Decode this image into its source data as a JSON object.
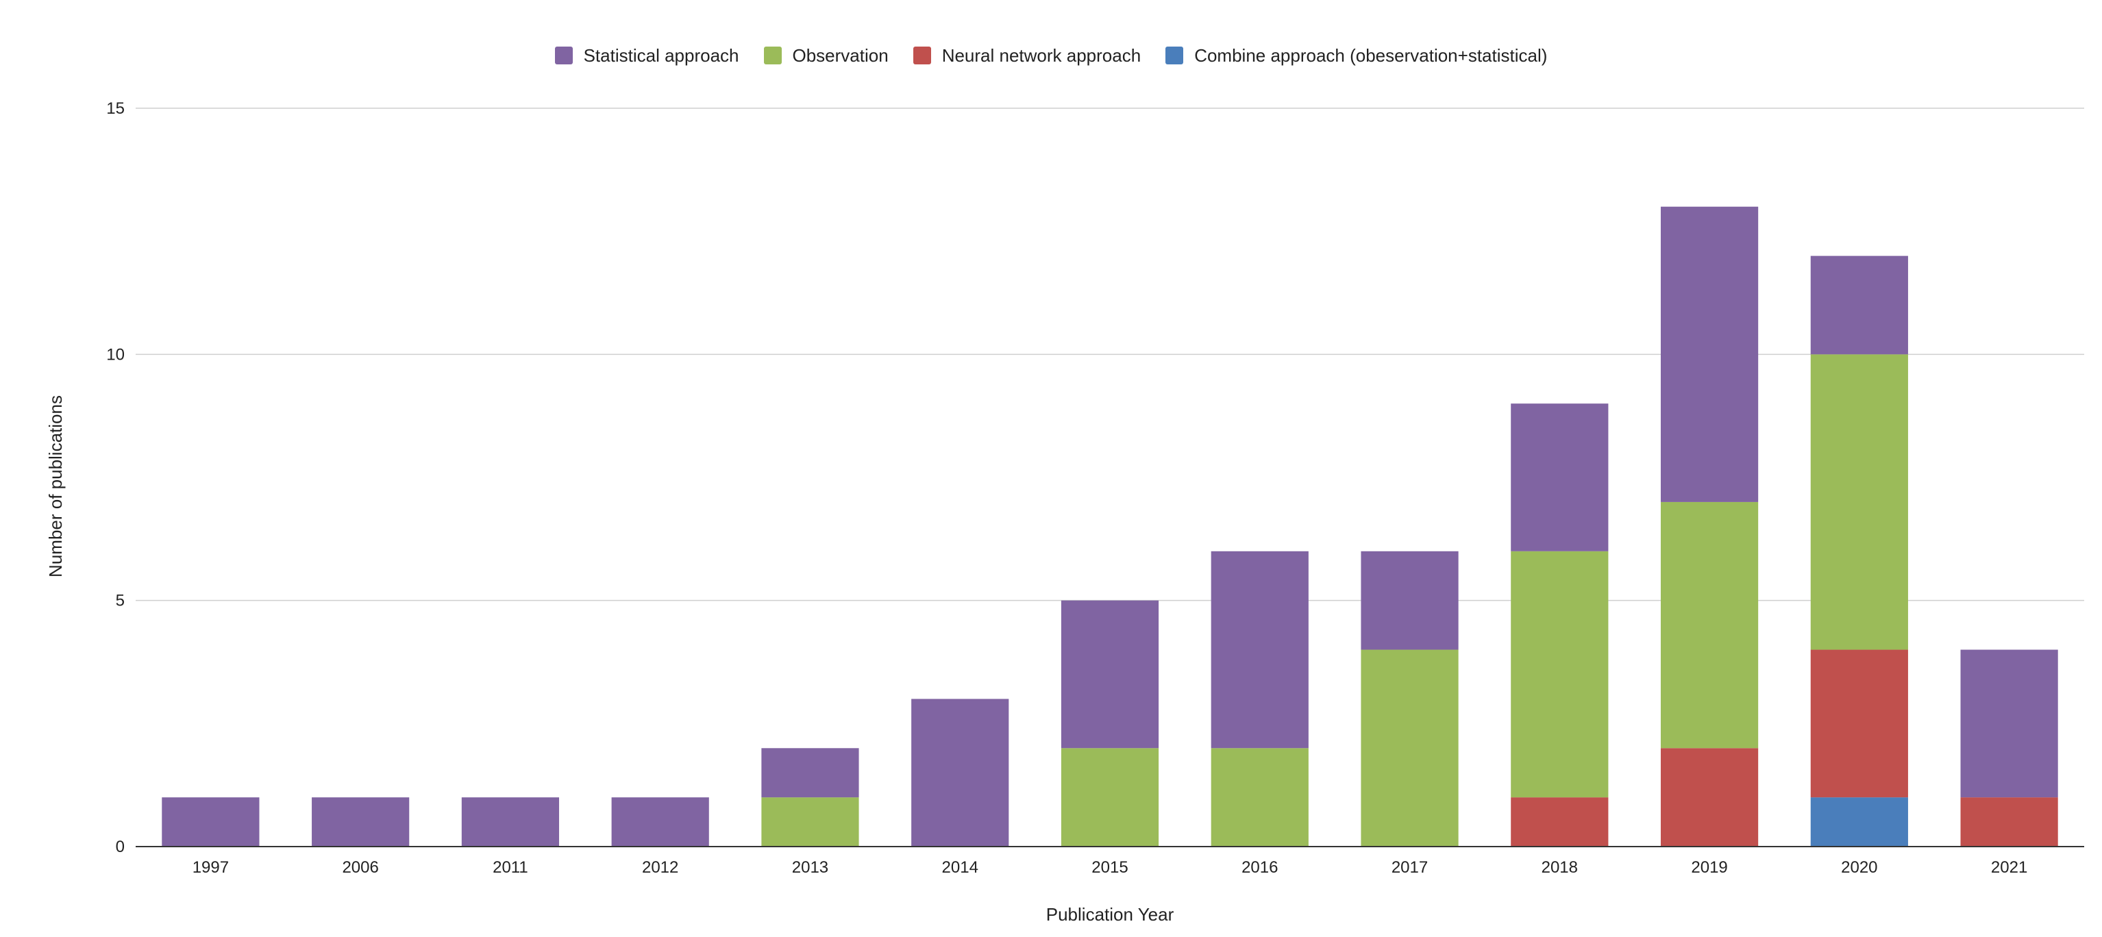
{
  "chart_data": {
    "type": "bar",
    "stacked": true,
    "title": "",
    "xlabel": "Publication Year",
    "ylabel": "Number of publications",
    "ylim": [
      0,
      15
    ],
    "yticks": [
      0,
      5,
      10,
      15
    ],
    "categories": [
      "1997",
      "2006",
      "2011",
      "2012",
      "2013",
      "2014",
      "2015",
      "2016",
      "2017",
      "2018",
      "2019",
      "2020",
      "2021"
    ],
    "series": [
      {
        "name": "Combine approach (obeservation+statistical)",
        "color": "#4a7ebb",
        "values": [
          0,
          0,
          0,
          0,
          0,
          0,
          0,
          0,
          0,
          0,
          0,
          1,
          0
        ]
      },
      {
        "name": "Neural network approach",
        "color": "#c0504d",
        "values": [
          0,
          0,
          0,
          0,
          0,
          0,
          0,
          0,
          0,
          1,
          2,
          3,
          1
        ]
      },
      {
        "name": "Observation",
        "color": "#9bbb59",
        "values": [
          0,
          0,
          0,
          0,
          1,
          0,
          2,
          2,
          4,
          5,
          5,
          6,
          0
        ]
      },
      {
        "name": "Statistical approach",
        "color": "#8064a2",
        "values": [
          1,
          1,
          1,
          1,
          1,
          3,
          3,
          4,
          2,
          3,
          6,
          2,
          3
        ]
      }
    ],
    "legend": {
      "position": "top",
      "order": [
        "Statistical approach",
        "Observation",
        "Neural network approach",
        "Combine approach (obeservation+statistical)"
      ]
    },
    "grid": true
  }
}
